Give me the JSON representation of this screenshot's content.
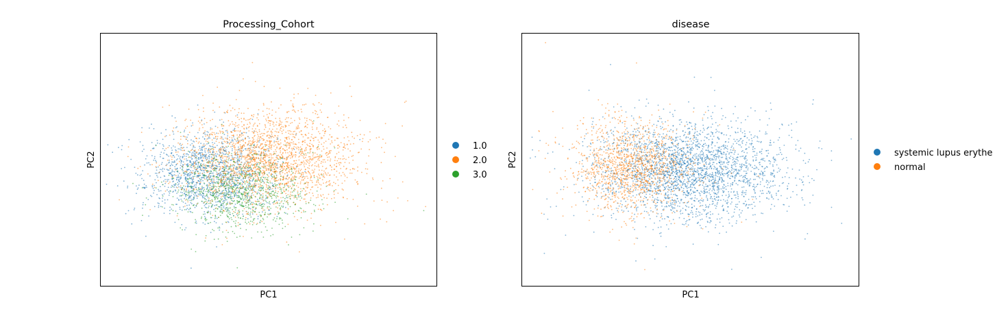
{
  "chart_data": [
    {
      "type": "scatter",
      "title": "Processing_Cohort",
      "xlabel": "PC1",
      "ylabel": "PC2",
      "grid": false,
      "axis_ticks": false,
      "legend_position": "right",
      "legend": [
        {
          "label": "1.0",
          "color": "#1f77b4"
        },
        {
          "label": "2.0",
          "color": "#ff7f0e"
        },
        {
          "label": "3.0",
          "color": "#2ca02c"
        }
      ],
      "xlim": [
        0,
        1
      ],
      "ylim": [
        0,
        1
      ],
      "series": [
        {
          "name": "1.0",
          "color": "#1f77b4",
          "n": 1500,
          "cx": 0.32,
          "cy": 0.44,
          "sx": 0.095,
          "sy": 0.085
        },
        {
          "name": "2.0",
          "color": "#ff7f0e",
          "n": 2200,
          "cx": 0.5,
          "cy": 0.5,
          "sx": 0.13,
          "sy": 0.095
        },
        {
          "name": "3.0",
          "color": "#2ca02c",
          "n": 900,
          "cx": 0.42,
          "cy": 0.37,
          "sx": 0.1,
          "sy": 0.075
        }
      ]
    },
    {
      "type": "scatter",
      "title": "disease",
      "xlabel": "PC1",
      "ylabel": "PC2",
      "grid": false,
      "axis_ticks": false,
      "legend_position": "right",
      "legend": [
        {
          "label": "systemic lupus erythe",
          "color": "#1f77b4"
        },
        {
          "label": "normal",
          "color": "#ff7f0e"
        }
      ],
      "xlim": [
        0,
        1
      ],
      "ylim": [
        0,
        1
      ],
      "series": [
        {
          "name": "systemic lupus erythe",
          "color": "#1f77b4",
          "n": 2700,
          "cx": 0.5,
          "cy": 0.46,
          "sx": 0.14,
          "sy": 0.095
        },
        {
          "name": "normal",
          "color": "#ff7f0e",
          "n": 1300,
          "cx": 0.32,
          "cy": 0.47,
          "sx": 0.085,
          "sy": 0.09
        }
      ]
    }
  ]
}
